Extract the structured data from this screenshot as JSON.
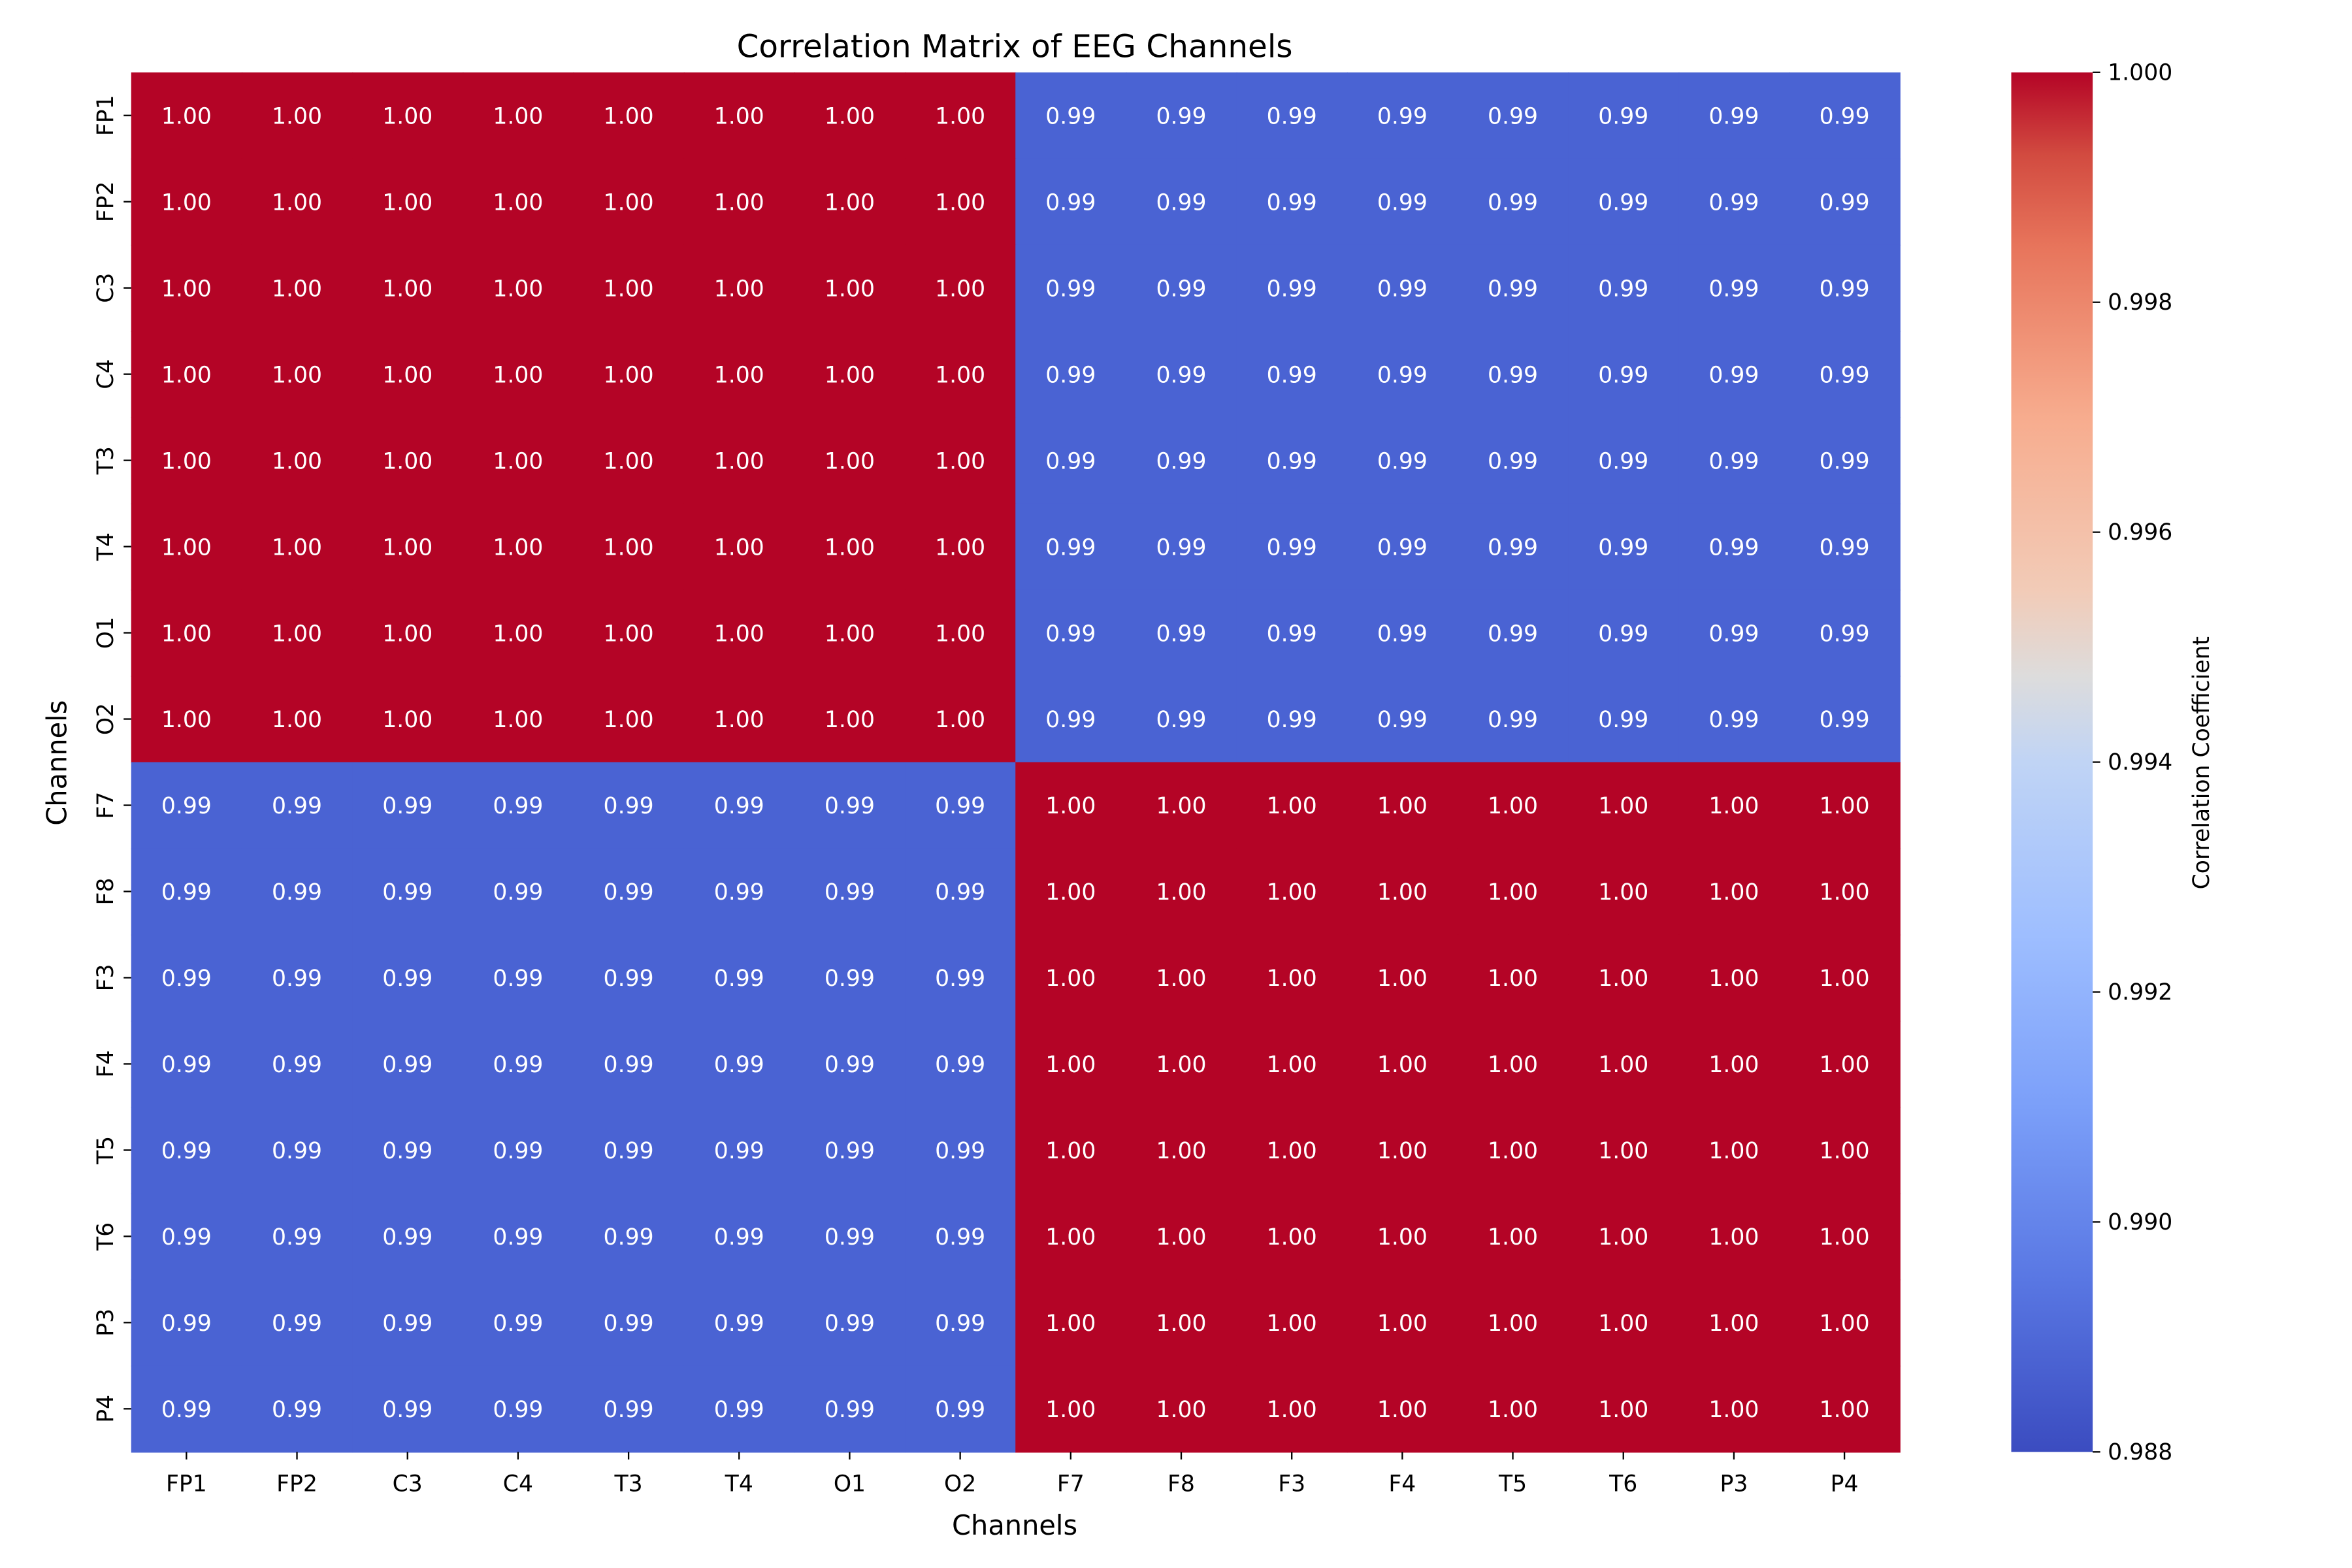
{
  "chart_data": {
    "type": "heatmap",
    "title": "Correlation Matrix of EEG Channels",
    "xlabel": "Channels",
    "ylabel": "Channels",
    "x_categories": [
      "FP1",
      "FP2",
      "C3",
      "C4",
      "T3",
      "T4",
      "O1",
      "O2",
      "F7",
      "F8",
      "F3",
      "F4",
      "T5",
      "T6",
      "P3",
      "P4"
    ],
    "y_categories": [
      "FP1",
      "FP2",
      "C3",
      "C4",
      "T3",
      "T4",
      "O1",
      "O2",
      "F7",
      "F8",
      "F3",
      "F4",
      "T5",
      "T6",
      "P3",
      "P4"
    ],
    "values_format": "2 decimals",
    "values": [
      [
        1.0,
        1.0,
        1.0,
        1.0,
        1.0,
        1.0,
        1.0,
        1.0,
        0.99,
        0.99,
        0.99,
        0.99,
        0.99,
        0.99,
        0.99,
        0.99
      ],
      [
        1.0,
        1.0,
        1.0,
        1.0,
        1.0,
        1.0,
        1.0,
        1.0,
        0.99,
        0.99,
        0.99,
        0.99,
        0.99,
        0.99,
        0.99,
        0.99
      ],
      [
        1.0,
        1.0,
        1.0,
        1.0,
        1.0,
        1.0,
        1.0,
        1.0,
        0.99,
        0.99,
        0.99,
        0.99,
        0.99,
        0.99,
        0.99,
        0.99
      ],
      [
        1.0,
        1.0,
        1.0,
        1.0,
        1.0,
        1.0,
        1.0,
        1.0,
        0.99,
        0.99,
        0.99,
        0.99,
        0.99,
        0.99,
        0.99,
        0.99
      ],
      [
        1.0,
        1.0,
        1.0,
        1.0,
        1.0,
        1.0,
        1.0,
        1.0,
        0.99,
        0.99,
        0.99,
        0.99,
        0.99,
        0.99,
        0.99,
        0.99
      ],
      [
        1.0,
        1.0,
        1.0,
        1.0,
        1.0,
        1.0,
        1.0,
        1.0,
        0.99,
        0.99,
        0.99,
        0.99,
        0.99,
        0.99,
        0.99,
        0.99
      ],
      [
        1.0,
        1.0,
        1.0,
        1.0,
        1.0,
        1.0,
        1.0,
        1.0,
        0.99,
        0.99,
        0.99,
        0.99,
        0.99,
        0.99,
        0.99,
        0.99
      ],
      [
        1.0,
        1.0,
        1.0,
        1.0,
        1.0,
        1.0,
        1.0,
        1.0,
        0.99,
        0.99,
        0.99,
        0.99,
        0.99,
        0.99,
        0.99,
        0.99
      ],
      [
        0.99,
        0.99,
        0.99,
        0.99,
        0.99,
        0.99,
        0.99,
        0.99,
        1.0,
        1.0,
        1.0,
        1.0,
        1.0,
        1.0,
        1.0,
        1.0
      ],
      [
        0.99,
        0.99,
        0.99,
        0.99,
        0.99,
        0.99,
        0.99,
        0.99,
        1.0,
        1.0,
        1.0,
        1.0,
        1.0,
        1.0,
        1.0,
        1.0
      ],
      [
        0.99,
        0.99,
        0.99,
        0.99,
        0.99,
        0.99,
        0.99,
        0.99,
        1.0,
        1.0,
        1.0,
        1.0,
        1.0,
        1.0,
        1.0,
        1.0
      ],
      [
        0.99,
        0.99,
        0.99,
        0.99,
        0.99,
        0.99,
        0.99,
        0.99,
        1.0,
        1.0,
        1.0,
        1.0,
        1.0,
        1.0,
        1.0,
        1.0
      ],
      [
        0.99,
        0.99,
        0.99,
        0.99,
        0.99,
        0.99,
        0.99,
        0.99,
        1.0,
        1.0,
        1.0,
        1.0,
        1.0,
        1.0,
        1.0,
        1.0
      ],
      [
        0.99,
        0.99,
        0.99,
        0.99,
        0.99,
        0.99,
        0.99,
        0.99,
        1.0,
        1.0,
        1.0,
        1.0,
        1.0,
        1.0,
        1.0,
        1.0
      ],
      [
        0.99,
        0.99,
        0.99,
        0.99,
        0.99,
        0.99,
        0.99,
        0.99,
        1.0,
        1.0,
        1.0,
        1.0,
        1.0,
        1.0,
        1.0,
        1.0
      ],
      [
        0.99,
        0.99,
        0.99,
        0.99,
        0.99,
        0.99,
        0.99,
        0.99,
        1.0,
        1.0,
        1.0,
        1.0,
        1.0,
        1.0,
        1.0,
        1.0
      ]
    ],
    "colormap": "coolwarm",
    "colorbar": {
      "label": "Correlation Coefficient",
      "range": [
        0.988,
        1.0
      ],
      "ticks": [
        "0.988",
        "0.990",
        "0.992",
        "0.994",
        "0.996",
        "0.998",
        "1.000"
      ]
    },
    "colors": {
      "high": "#b40426",
      "low": "#3b4cc0",
      "mid": "#dddcdc",
      "annotation_text": "#ffffff"
    }
  }
}
